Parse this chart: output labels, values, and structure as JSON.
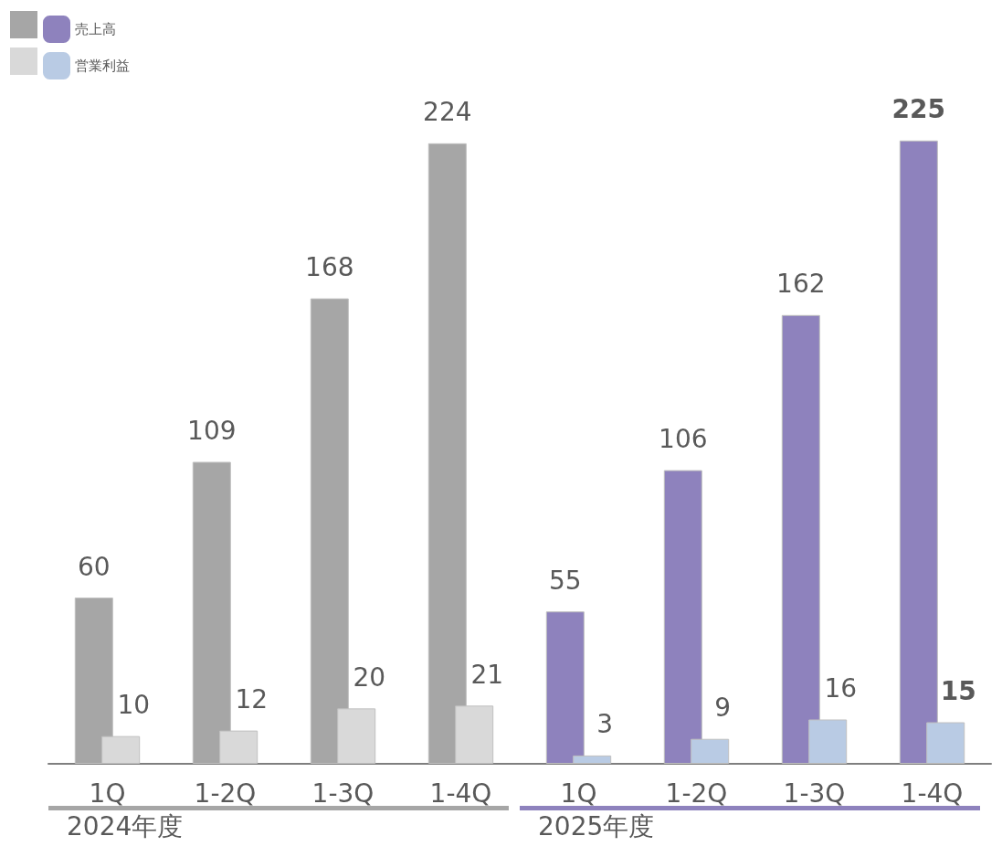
{
  "chart_data": {
    "type": "bar",
    "categories": [
      "1Q",
      "1-2Q",
      "1-3Q",
      "1-4Q",
      "1Q",
      "1-2Q",
      "1-3Q",
      "1-4Q"
    ],
    "series": [
      {
        "name": "売上高",
        "colors": [
          "#a6a6a6",
          "#a6a6a6",
          "#a6a6a6",
          "#a6a6a6",
          "#8e82bd",
          "#8e82bd",
          "#8e82bd",
          "#8e82bd"
        ],
        "values": [
          60,
          109,
          168,
          224,
          55,
          106,
          162,
          225
        ]
      },
      {
        "name": "営業利益",
        "colors": [
          "#d9d9d9",
          "#d9d9d9",
          "#d9d9d9",
          "#d9d9d9",
          "#b9cbe4",
          "#b9cbe4",
          "#b9cbe4",
          "#b9cbe4"
        ],
        "values": [
          10,
          12,
          20,
          21,
          3,
          9,
          16,
          15
        ]
      }
    ],
    "annotations": [
      "2024年度",
      "2025年度"
    ],
    "data_labels": true,
    "legend": "top left"
  }
}
